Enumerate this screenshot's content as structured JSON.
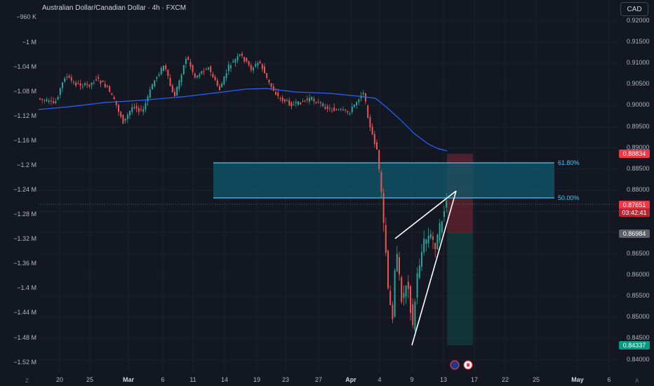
{
  "header": {
    "title": "Australian Dollar/Canadian Dollar · 4h · FXCM",
    "currency_button": "CAD"
  },
  "left_axis": [
    "−960 K",
    "−1 M",
    "−1.04 M",
    "−1.08 M",
    "−1.12 M",
    "−1.16 M",
    "−1.2 M",
    "−1.24 M",
    "−1.28 M",
    "−1.32 M",
    "−1.36 M",
    "−1.4 M",
    "−1.44 M",
    "−1.48 M",
    "−1.52 M"
  ],
  "right_axis": [
    "0.92000",
    "0.91500",
    "0.91000",
    "0.90500",
    "0.90000",
    "0.89500",
    "0.89000",
    "0.88500",
    "0.88000",
    "0.87500",
    "0.86500",
    "0.86000",
    "0.85500",
    "0.85000",
    "0.84500",
    "0.84000"
  ],
  "time_axis": [
    {
      "label": "20",
      "bold": false
    },
    {
      "label": "25",
      "bold": false
    },
    {
      "label": "Mar",
      "bold": true
    },
    {
      "label": "6",
      "bold": false
    },
    {
      "label": "11",
      "bold": false
    },
    {
      "label": "14",
      "bold": false
    },
    {
      "label": "19",
      "bold": false
    },
    {
      "label": "23",
      "bold": false
    },
    {
      "label": "27",
      "bold": false
    },
    {
      "label": "Apr",
      "bold": true
    },
    {
      "label": "4",
      "bold": false
    },
    {
      "label": "9",
      "bold": false
    },
    {
      "label": "13",
      "bold": false
    },
    {
      "label": "17",
      "bold": false
    },
    {
      "label": "22",
      "bold": false
    },
    {
      "label": "25",
      "bold": false
    },
    {
      "label": "May",
      "bold": true
    },
    {
      "label": "6",
      "bold": false
    }
  ],
  "price_tags": {
    "stop": {
      "value": "0.88834",
      "color": "#f23645"
    },
    "current": {
      "value": "0.87651",
      "countdown": "03:42:41",
      "color": "#f23645"
    },
    "entry": {
      "value": "0.86984",
      "color": "#5d606b"
    },
    "target": {
      "value": "0.84337",
      "color": "#089981"
    }
  },
  "fib": {
    "upper": "61.80%",
    "lower": "50.00%"
  },
  "colors": {
    "up": "#26a69a",
    "down": "#ef5350",
    "ma": "#2962ff",
    "zone": "#0f5a6e",
    "zone_line": "#4fc3f7"
  },
  "corners": {
    "z": "Z",
    "a": "A"
  }
}
